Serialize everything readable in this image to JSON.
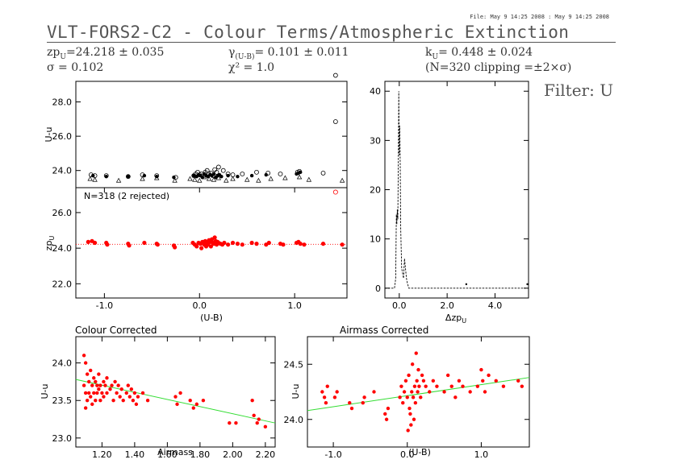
{
  "file_info": "File: May  9 14:25 2008 : May  9 14:25 2008",
  "title": "VLT-FORS2-C2 - Colour Terms/Atmospheric Extinction",
  "stats": {
    "zp": "zp",
    "zp_sub": "U",
    "zp_value": "=24.218 ± 0.035",
    "sigma": "σ = 0.102",
    "gamma": "γ",
    "gamma_sub": "(U-B)",
    "gamma_value": "= 0.101 ± 0.011",
    "chi": "χ² = 1.0",
    "k": "k",
    "k_sub": "U",
    "k_value": "= 0.448 ± 0.024",
    "clipping": "(N=320 clipping =±2×σ)"
  },
  "filter_label": "Filter: U",
  "colors": {
    "red": "#ff0000",
    "green": "#33dd33",
    "axis": "#000000"
  },
  "chart_data": [
    {
      "id": "panel-top",
      "type": "scatter",
      "ylabel": "U-u",
      "xlim": [
        -1.3,
        1.55
      ],
      "ylim": [
        23.0,
        29.2
      ],
      "yticks": [
        "24.0",
        "26.0",
        "28.0"
      ],
      "ytick_values": [
        24.0,
        26.0,
        28.0
      ],
      "series": [
        {
          "marker": "circle",
          "x": [
            -1.14,
            -1.1,
            -0.98,
            -0.75,
            -0.6,
            -0.45,
            -0.25,
            -0.06,
            -0.04,
            -0.02,
            0.0,
            0.02,
            0.04,
            0.06,
            0.08,
            0.1,
            0.12,
            0.14,
            0.16,
            0.18,
            0.2,
            0.25,
            0.3,
            0.35,
            0.45,
            0.6,
            0.72,
            0.85,
            1.03,
            1.05,
            1.3,
            1.43,
            1.43
          ],
          "y": [
            23.75,
            23.7,
            23.7,
            23.65,
            23.75,
            23.7,
            23.6,
            23.7,
            23.8,
            23.9,
            23.75,
            23.8,
            23.7,
            23.9,
            24.0,
            23.8,
            23.85,
            23.7,
            24.05,
            23.9,
            24.2,
            24.0,
            23.8,
            23.75,
            23.8,
            23.9,
            23.85,
            23.8,
            23.9,
            23.95,
            23.85,
            26.85,
            29.55
          ]
        },
        {
          "marker": "triangle",
          "x": [
            -1.15,
            -1.1,
            -0.85,
            -0.6,
            -0.45,
            -0.26,
            -0.1,
            -0.05,
            0.0,
            0.05,
            0.1,
            0.15,
            0.2,
            0.28,
            0.35,
            0.5,
            0.62,
            0.75,
            0.9,
            1.05,
            1.15,
            1.5
          ],
          "y": [
            23.5,
            23.45,
            23.4,
            23.5,
            23.55,
            23.4,
            23.5,
            23.45,
            23.4,
            23.6,
            23.5,
            23.45,
            23.55,
            23.4,
            23.5,
            23.45,
            23.4,
            23.5,
            23.55,
            23.6,
            23.45,
            23.4
          ]
        },
        {
          "marker": "dot",
          "x": [
            -1.12,
            -0.98,
            -0.75,
            -0.58,
            -0.45,
            -0.27,
            -0.06,
            -0.03,
            -0.01,
            0.01,
            0.03,
            0.05,
            0.07,
            0.09,
            0.11,
            0.13,
            0.15,
            0.17,
            0.19,
            0.21,
            0.23,
            0.3,
            0.4,
            0.55,
            0.7,
            1.02,
            1.04,
            1.06
          ],
          "y": [
            23.7,
            23.65,
            23.65,
            23.7,
            23.65,
            23.6,
            23.7,
            23.65,
            23.75,
            23.7,
            23.6,
            23.8,
            23.7,
            23.65,
            23.75,
            23.7,
            23.8,
            23.6,
            23.7,
            23.75,
            23.65,
            23.7,
            23.65,
            23.7,
            23.75,
            23.8,
            23.85,
            23.9
          ]
        }
      ]
    },
    {
      "id": "panel-zp",
      "type": "scatter",
      "ylabel": "zp",
      "ylabel_sub": "U",
      "annotation": "N=318 (2 rejected)",
      "xlabel": "(U-B)",
      "xlim": [
        -1.3,
        1.55
      ],
      "ylim": [
        21.2,
        27.4
      ],
      "xticks": [
        "-1.0",
        "0.0",
        "1.0"
      ],
      "xtick_values": [
        -1.0,
        0.0,
        1.0
      ],
      "yticks": [
        "22.0",
        "24.0",
        "26.0"
      ],
      "ytick_values": [
        22.0,
        24.0,
        26.0
      ],
      "reference_line": 24.218,
      "points_x": [
        -1.17,
        -1.13,
        -1.1,
        -0.98,
        -0.97,
        -0.75,
        -0.74,
        -0.58,
        -0.45,
        -0.44,
        -0.27,
        -0.26,
        -0.07,
        -0.05,
        -0.03,
        -0.01,
        0.01,
        0.02,
        0.03,
        0.05,
        0.06,
        0.07,
        0.08,
        0.09,
        0.1,
        0.11,
        0.12,
        0.13,
        0.14,
        0.15,
        0.16,
        0.17,
        0.18,
        0.19,
        0.2,
        0.22,
        0.24,
        0.26,
        0.3,
        0.35,
        0.4,
        0.45,
        0.55,
        0.6,
        0.7,
        0.73,
        0.85,
        0.88,
        1.02,
        1.04,
        1.06,
        1.1,
        1.3,
        1.5
      ],
      "points_y": [
        24.35,
        24.4,
        24.3,
        24.3,
        24.2,
        24.25,
        24.15,
        24.3,
        24.25,
        24.2,
        24.15,
        24.05,
        24.3,
        24.2,
        24.1,
        24.3,
        24.25,
        24.0,
        24.35,
        24.2,
        24.4,
        24.1,
        24.3,
        24.2,
        24.45,
        24.35,
        24.1,
        24.5,
        24.3,
        24.25,
        24.6,
        24.4,
        24.2,
        24.35,
        24.3,
        24.25,
        24.2,
        24.3,
        24.2,
        24.3,
        24.25,
        24.2,
        24.3,
        24.25,
        24.2,
        24.3,
        24.25,
        24.2,
        24.3,
        24.35,
        24.25,
        24.2,
        24.25,
        24.2
      ],
      "rejected_x": [
        1.43
      ],
      "rejected_y": [
        27.15
      ]
    },
    {
      "id": "panel-hist",
      "type": "line",
      "xlabel": "Δzp",
      "xlabel_sub": "U",
      "xlim": [
        -0.6,
        5.4
      ],
      "ylim": [
        -2,
        42
      ],
      "xticks": [
        "0.0",
        "2.0",
        "4.0"
      ],
      "xtick_values": [
        0.0,
        2.0,
        4.0
      ],
      "yticks": [
        "0",
        "10",
        "20",
        "30",
        "40"
      ],
      "ytick_values": [
        0,
        10,
        20,
        30,
        40
      ],
      "x": [
        -0.6,
        -0.2,
        -0.15,
        -0.12,
        -0.1,
        -0.08,
        -0.06,
        -0.04,
        -0.02,
        0.0,
        0.02,
        0.04,
        0.06,
        0.08,
        0.1,
        0.14,
        0.18,
        0.22,
        0.26,
        0.3,
        0.34,
        0.4,
        5.4
      ],
      "y": [
        0,
        0,
        2,
        15,
        13,
        16,
        14,
        25,
        40,
        27,
        33,
        25,
        12,
        8,
        4,
        3,
        2,
        6,
        4,
        2,
        1,
        0,
        0
      ]
    },
    {
      "id": "panel-colour",
      "type": "scatter",
      "title": "Colour Corrected",
      "xlabel": "Airmass",
      "ylabel": "U-u",
      "xlim": [
        1.04,
        2.26
      ],
      "ylim": [
        22.88,
        24.35
      ],
      "xticks": [
        "1.20",
        "1.40",
        "1.60",
        "1.80",
        "2.00",
        "2.20"
      ],
      "xtick_values": [
        1.2,
        1.4,
        1.6,
        1.8,
        2.0,
        2.2
      ],
      "yticks": [
        "23.0",
        "23.5",
        "24.0"
      ],
      "ytick_values": [
        23.0,
        23.5,
        24.0
      ],
      "fit_line": [
        [
          1.04,
          23.78
        ],
        [
          2.26,
          23.2
        ]
      ],
      "points_x": [
        1.09,
        1.09,
        1.1,
        1.1,
        1.1,
        1.11,
        1.11,
        1.12,
        1.12,
        1.13,
        1.13,
        1.14,
        1.14,
        1.15,
        1.15,
        1.16,
        1.16,
        1.17,
        1.17,
        1.18,
        1.18,
        1.19,
        1.19,
        1.2,
        1.21,
        1.21,
        1.22,
        1.23,
        1.23,
        1.25,
        1.26,
        1.27,
        1.28,
        1.29,
        1.3,
        1.31,
        1.32,
        1.33,
        1.35,
        1.36,
        1.37,
        1.38,
        1.39,
        1.4,
        1.41,
        1.42,
        1.45,
        1.48,
        1.65,
        1.66,
        1.68,
        1.74,
        1.76,
        1.78,
        1.82,
        1.98,
        2.02,
        2.12,
        2.13,
        2.15,
        2.16,
        2.2
      ],
      "points_y": [
        24.1,
        23.7,
        24.0,
        23.6,
        23.4,
        23.85,
        23.5,
        23.75,
        23.6,
        23.9,
        23.55,
        23.7,
        23.45,
        23.8,
        23.6,
        23.75,
        23.5,
        23.7,
        23.6,
        23.85,
        23.65,
        23.7,
        23.5,
        23.6,
        23.75,
        23.55,
        23.7,
        23.8,
        23.6,
        23.65,
        23.7,
        23.5,
        23.75,
        23.6,
        23.7,
        23.55,
        23.65,
        23.5,
        23.6,
        23.7,
        23.55,
        23.65,
        23.5,
        23.6,
        23.45,
        23.55,
        23.6,
        23.5,
        23.55,
        23.45,
        23.6,
        23.5,
        23.4,
        23.45,
        23.5,
        23.2,
        23.2,
        23.5,
        23.3,
        23.2,
        23.25,
        23.15
      ]
    },
    {
      "id": "panel-airmass",
      "type": "scatter",
      "title": "Airmass Corrected",
      "xlabel": "(U-B)",
      "ylabel": "U-u",
      "xlim": [
        -1.35,
        1.65
      ],
      "ylim": [
        23.75,
        24.75
      ],
      "xticks": [
        "-1.0",
        "0.0",
        "1.0"
      ],
      "xtick_values": [
        -1.0,
        0.0,
        1.0
      ],
      "yticks": [
        "24.0",
        "24.5"
      ],
      "ytick_values": [
        24.0,
        24.5
      ],
      "fit_line": [
        [
          -1.35,
          24.08
        ],
        [
          1.65,
          24.38
        ]
      ],
      "points_x": [
        -1.15,
        -1.12,
        -1.1,
        -1.08,
        -0.98,
        -0.95,
        -0.78,
        -0.75,
        -0.6,
        -0.58,
        -0.45,
        -0.3,
        -0.28,
        -0.26,
        -0.1,
        -0.08,
        -0.06,
        -0.04,
        -0.02,
        0.0,
        0.01,
        0.02,
        0.03,
        0.04,
        0.05,
        0.06,
        0.07,
        0.08,
        0.09,
        0.1,
        0.11,
        0.12,
        0.13,
        0.14,
        0.15,
        0.16,
        0.18,
        0.2,
        0.22,
        0.25,
        0.3,
        0.35,
        0.4,
        0.5,
        0.55,
        0.6,
        0.65,
        0.7,
        0.75,
        0.85,
        0.95,
        1.0,
        1.02,
        1.05,
        1.1,
        1.2,
        1.3,
        1.5,
        1.55
      ],
      "points_y": [
        24.25,
        24.2,
        24.15,
        24.3,
        24.2,
        24.25,
        24.15,
        24.1,
        24.15,
        24.2,
        24.25,
        24.05,
        24.0,
        24.1,
        24.2,
        24.3,
        24.15,
        24.25,
        24.35,
        24.2,
        23.9,
        24.4,
        24.1,
        24.05,
        23.95,
        24.25,
        24.5,
        24.2,
        24.0,
        24.3,
        24.15,
        24.6,
        24.35,
        24.25,
        24.45,
        24.3,
        24.2,
        24.4,
        24.35,
        24.3,
        24.25,
        24.35,
        24.3,
        24.25,
        24.4,
        24.3,
        24.2,
        24.35,
        24.3,
        24.25,
        24.3,
        24.45,
        24.35,
        24.25,
        24.4,
        24.35,
        24.3,
        24.35,
        24.3
      ]
    }
  ]
}
